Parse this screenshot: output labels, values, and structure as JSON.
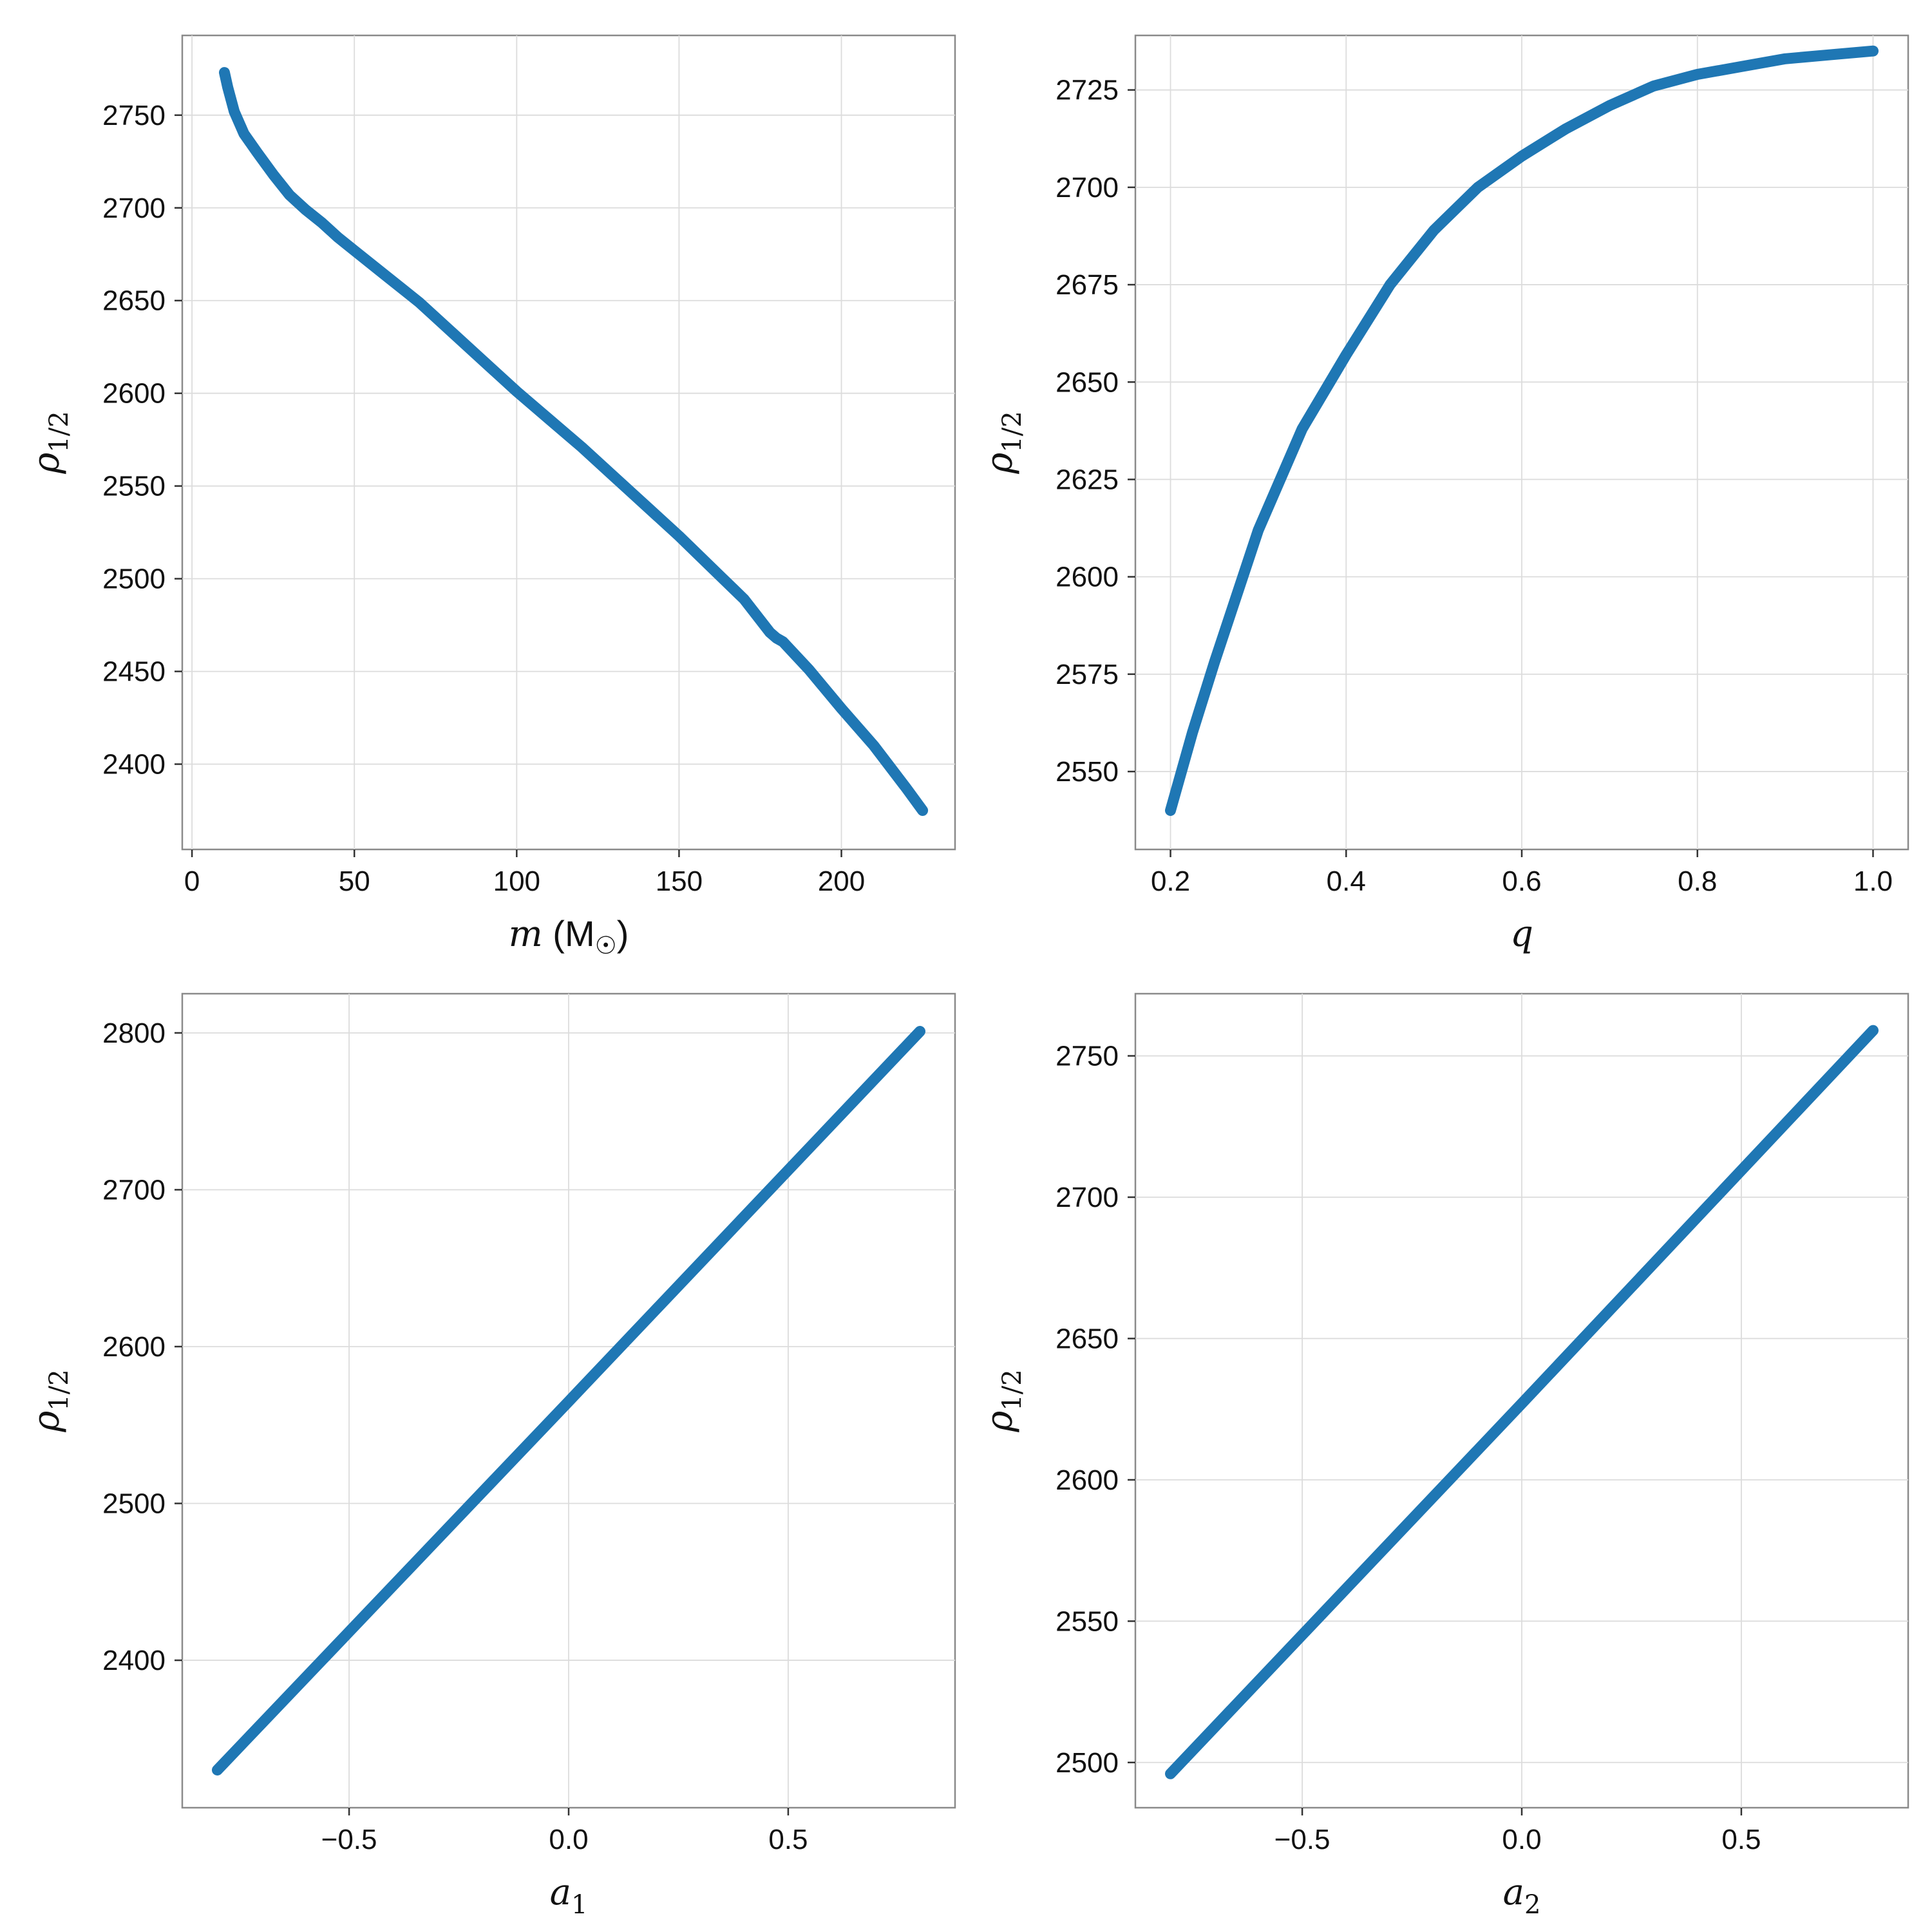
{
  "chart_data": [
    {
      "type": "scatter",
      "xlabel": "m (M☉)",
      "xlabel_parts": {
        "var": "m",
        "unit_open": " (M",
        "unit_sym": "☉",
        "unit_close": ")"
      },
      "ylabel": "ρ1/2",
      "ylabel_parts": {
        "var": "ρ",
        "sub": "1/2"
      },
      "xlim": [
        -3,
        235
      ],
      "ylim": [
        2354,
        2793
      ],
      "xticks": [
        0,
        50,
        100,
        150,
        200
      ],
      "xtick_labels": [
        "0",
        "50",
        "100",
        "150",
        "200"
      ],
      "yticks": [
        2400,
        2450,
        2500,
        2550,
        2600,
        2650,
        2700,
        2750
      ],
      "ytick_labels": [
        "2400",
        "2450",
        "2500",
        "2550",
        "2600",
        "2650",
        "2700",
        "2750"
      ],
      "grid": true,
      "series": [
        {
          "color": "#1f77b4",
          "x": [
            10,
            11,
            13,
            16,
            20,
            25,
            30,
            35,
            40,
            45,
            50,
            60,
            70,
            80,
            90,
            100,
            110,
            120,
            130,
            140,
            150,
            160,
            170,
            178,
            180,
            182,
            190,
            200,
            210,
            220,
            225
          ],
          "y": [
            2773,
            2765,
            2752,
            2740,
            2730,
            2718,
            2707,
            2699,
            2692,
            2684,
            2677,
            2663,
            2649,
            2633,
            2617,
            2601,
            2586,
            2571,
            2555,
            2539,
            2523,
            2506,
            2489,
            2471,
            2468,
            2466,
            2451,
            2430,
            2410,
            2387,
            2375
          ]
        }
      ]
    },
    {
      "type": "scatter",
      "xlabel": "q",
      "xlabel_parts": {
        "var": "q"
      },
      "ylabel": "ρ1/2",
      "ylabel_parts": {
        "var": "ρ",
        "sub": "1/2"
      },
      "xlim": [
        0.16,
        1.04
      ],
      "ylim": [
        2530,
        2739
      ],
      "xticks": [
        0.2,
        0.4,
        0.6,
        0.8,
        1.0
      ],
      "xtick_labels": [
        "0.2",
        "0.4",
        "0.6",
        "0.8",
        "1.0"
      ],
      "yticks": [
        2550,
        2575,
        2600,
        2625,
        2650,
        2675,
        2700,
        2725
      ],
      "ytick_labels": [
        "2550",
        "2575",
        "2600",
        "2625",
        "2650",
        "2675",
        "2700",
        "2725"
      ],
      "grid": true,
      "series": [
        {
          "color": "#1f77b4",
          "x": [
            0.2,
            0.225,
            0.25,
            0.3,
            0.35,
            0.4,
            0.45,
            0.5,
            0.55,
            0.6,
            0.65,
            0.7,
            0.75,
            0.8,
            0.85,
            0.9,
            0.95,
            1.0
          ],
          "y": [
            2540,
            2560,
            2578,
            2612,
            2638,
            2657,
            2675,
            2689,
            2700,
            2708,
            2715,
            2721,
            2726,
            2729,
            2731,
            2733,
            2734,
            2735
          ]
        }
      ]
    },
    {
      "type": "scatter",
      "xlabel": "a1",
      "xlabel_parts": {
        "var": "a",
        "sub": "1"
      },
      "ylabel": "ρ1/2",
      "ylabel_parts": {
        "var": "ρ",
        "sub": "1/2"
      },
      "xlim": [
        -0.88,
        0.88
      ],
      "ylim": [
        2306,
        2825
      ],
      "xticks": [
        -0.5,
        0.0,
        0.5
      ],
      "xtick_labels": [
        "−0.5",
        "0.0",
        "0.5"
      ],
      "yticks": [
        2400,
        2500,
        2600,
        2700,
        2800
      ],
      "ytick_labels": [
        "2400",
        "2500",
        "2600",
        "2700",
        "2800"
      ],
      "grid": true,
      "series": [
        {
          "color": "#1f77b4",
          "x": [
            -0.8,
            0.0,
            0.8
          ],
          "y": [
            2330,
            2565,
            2801
          ]
        }
      ]
    },
    {
      "type": "scatter",
      "xlabel": "a2",
      "xlabel_parts": {
        "var": "a",
        "sub": "2"
      },
      "ylabel": "ρ1/2",
      "ylabel_parts": {
        "var": "ρ",
        "sub": "1/2"
      },
      "xlim": [
        -0.88,
        0.88
      ],
      "ylim": [
        2484,
        2772
      ],
      "xticks": [
        -0.5,
        0.0,
        0.5
      ],
      "xtick_labels": [
        "−0.5",
        "0.0",
        "0.5"
      ],
      "yticks": [
        2500,
        2550,
        2600,
        2650,
        2700,
        2750
      ],
      "ytick_labels": [
        "2500",
        "2550",
        "2600",
        "2650",
        "2700",
        "2750"
      ],
      "grid": true,
      "series": [
        {
          "color": "#1f77b4",
          "x": [
            -0.8,
            0.0,
            0.8
          ],
          "y": [
            2496,
            2627,
            2759
          ]
        }
      ]
    }
  ]
}
